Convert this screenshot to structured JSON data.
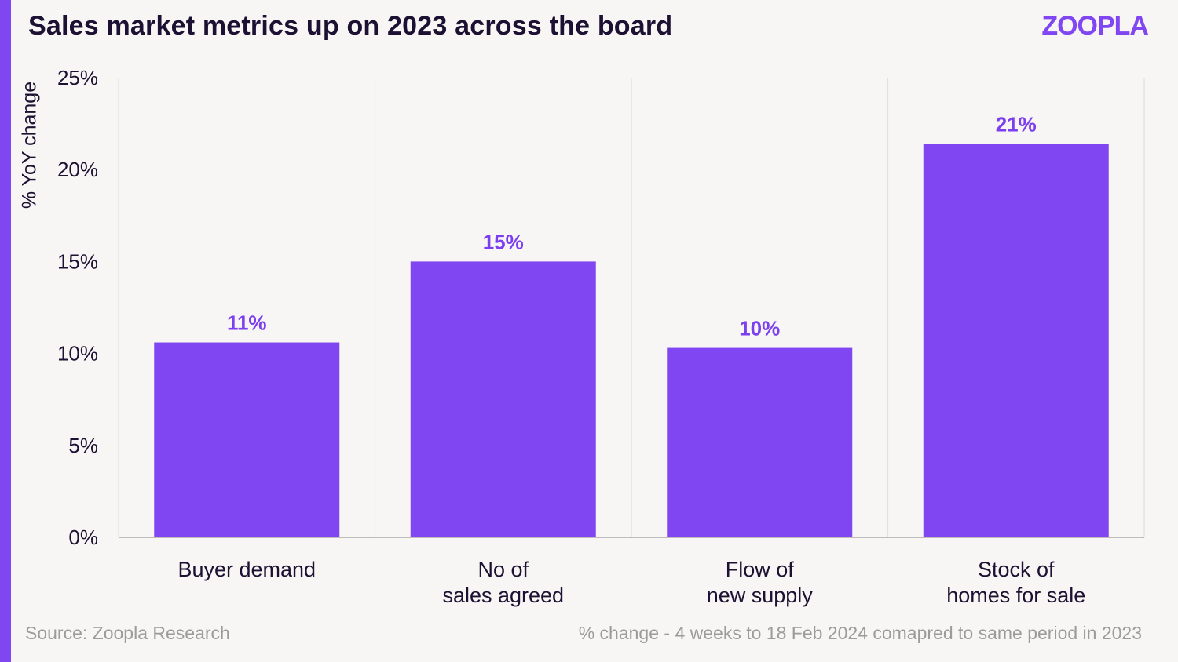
{
  "header": {
    "title": "Sales market metrics up on 2023 across the board",
    "logo_text": "ZOOPLA"
  },
  "footer": {
    "source": "Source: Zoopla Research",
    "note": "% change - 4 weeks to 18 Feb 2024 comapred to same period in 2023"
  },
  "colors": {
    "accent": "#8046f1",
    "bar": "#8046f1",
    "label": "#7b3ff0",
    "text": "#1c1132",
    "grid": "#e0e0e0",
    "axis": "#bdbdbd"
  },
  "chart_data": {
    "type": "bar",
    "title": "Sales market metrics up on 2023 across the board",
    "xlabel": "",
    "ylabel": "% YoY change",
    "ylim": [
      0,
      25
    ],
    "yticks": [
      0,
      5,
      10,
      15,
      20,
      25
    ],
    "ytick_labels": [
      "0%",
      "5%",
      "10%",
      "15%",
      "20%",
      "25%"
    ],
    "categories": [
      [
        "Buyer demand"
      ],
      [
        "No of",
        "sales agreed"
      ],
      [
        "Flow of",
        "new supply"
      ],
      [
        "Stock of",
        "homes for sale"
      ]
    ],
    "values": [
      10.6,
      15.0,
      10.3,
      21.4
    ],
    "data_labels": [
      "11%",
      "15%",
      "10%",
      "21%"
    ],
    "grid": "vertical separators",
    "legend": "none"
  }
}
